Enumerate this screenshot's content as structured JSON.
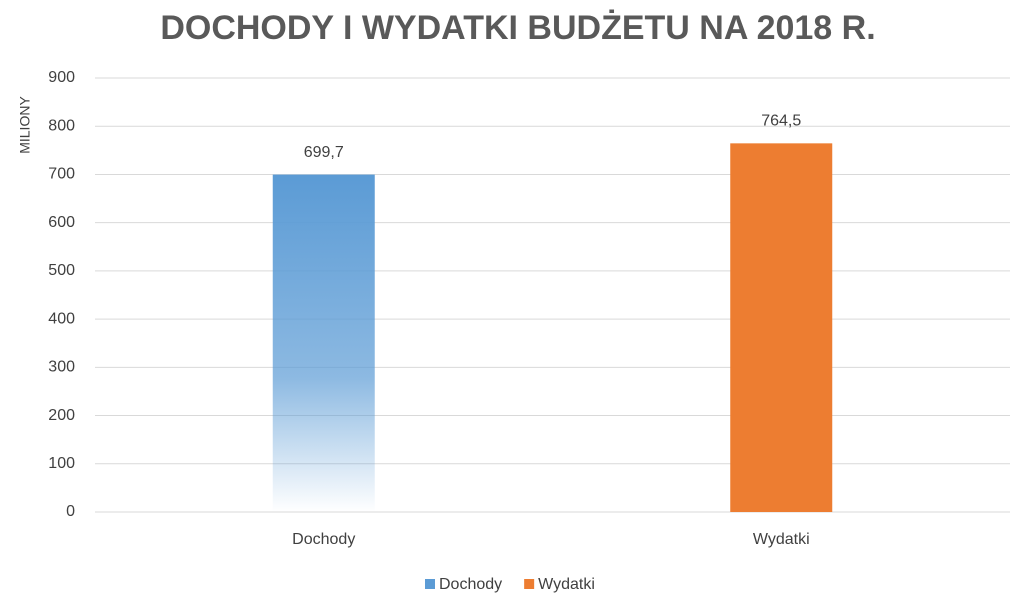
{
  "chart_data": {
    "type": "bar",
    "title": "DOCHODY I WYDATKI BUDŻETU NA 2018 R.",
    "y_label": "MILIONY",
    "categories": [
      "Dochody",
      "Wydatki"
    ],
    "series": [
      {
        "name": "Dochody",
        "color": "#5b9bd5",
        "values": [
          699.7,
          null
        ],
        "value_labels": [
          "699,7",
          null
        ]
      },
      {
        "name": "Wydatki",
        "color": "#ed7d31",
        "values": [
          null,
          764.5
        ],
        "value_labels": [
          null,
          "764,5"
        ]
      }
    ],
    "ylim": [
      0,
      900
    ],
    "yticks": [
      0,
      100,
      200,
      300,
      400,
      500,
      600,
      700,
      800,
      900
    ],
    "grid": true,
    "legend": "bottom"
  }
}
